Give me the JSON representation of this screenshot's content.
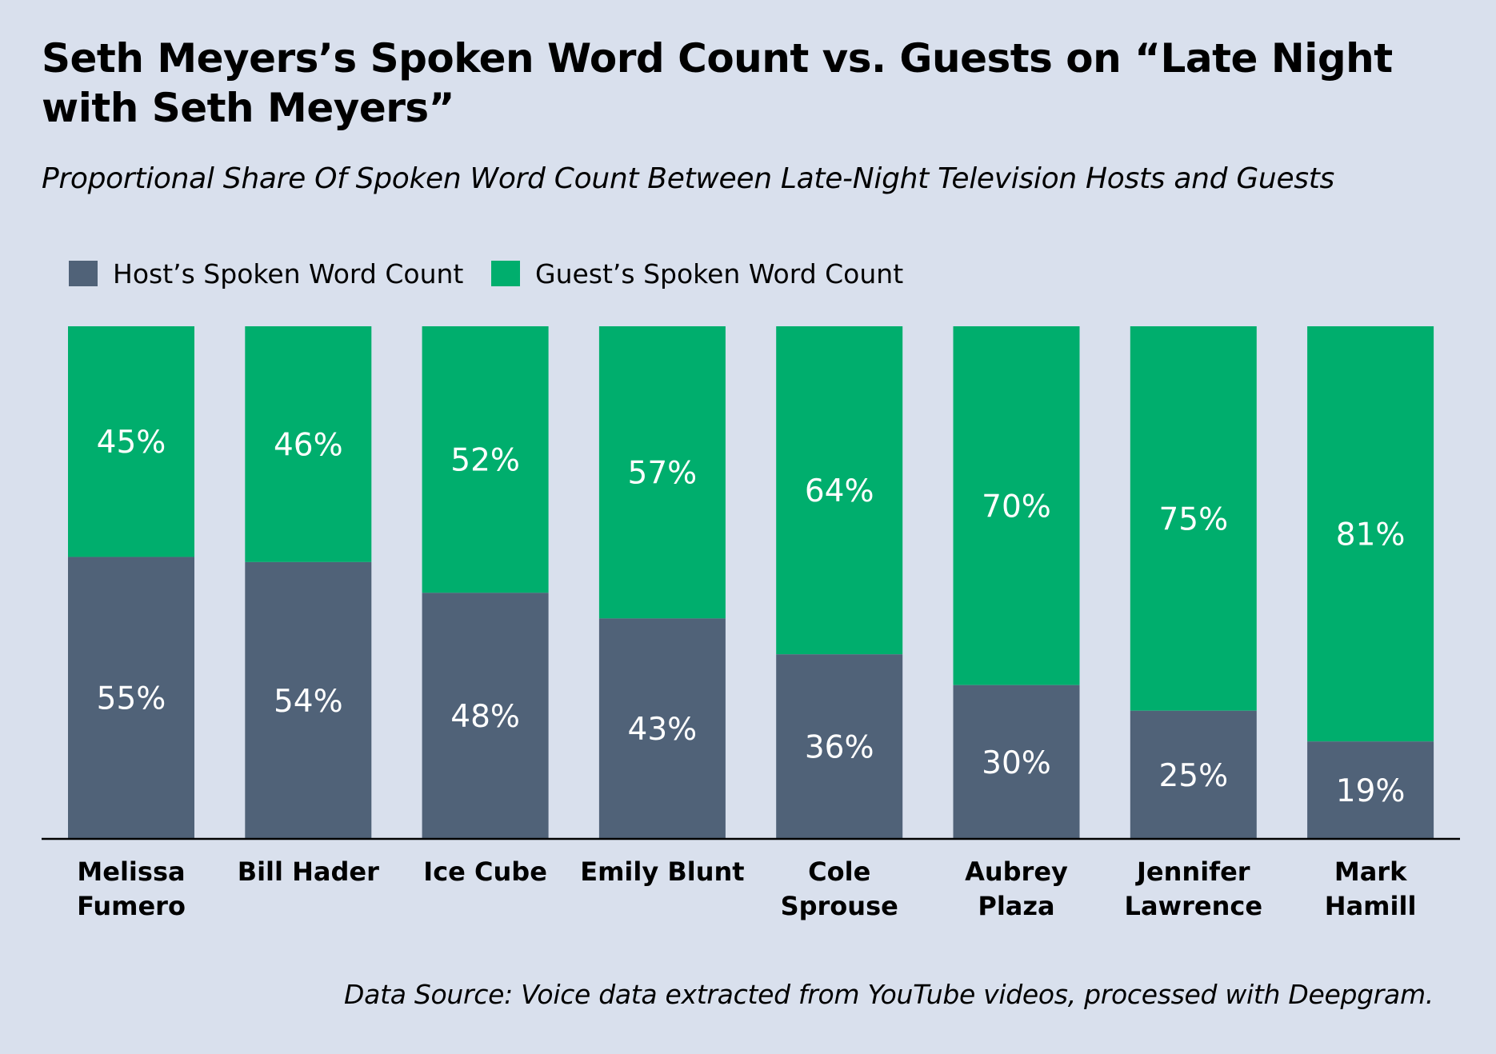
{
  "title": "Seth Meyers’s Spoken Word Count vs. Guests on “Late Night with Seth Meyers”",
  "subtitle": "Proportional Share Of Spoken Word Count Between Late-Night Television Hosts and Guests",
  "source": "Data Source: Voice data extracted from YouTube videos, processed with Deepgram.",
  "colors": {
    "background": "#d9e0ed",
    "host": "#506278",
    "guest": "#00ae6d",
    "axis": "#000000"
  },
  "chart_data": {
    "type": "bar",
    "stacked": true,
    "normalized": true,
    "categories": [
      [
        "Melissa",
        "Fumero"
      ],
      [
        "Bill Hader"
      ],
      [
        "Ice Cube"
      ],
      [
        "Emily Blunt"
      ],
      [
        "Cole",
        "Sprouse"
      ],
      [
        "Aubrey",
        "Plaza"
      ],
      [
        "Jennifer",
        "Lawrence"
      ],
      [
        "Mark",
        "Hamill"
      ]
    ],
    "series": [
      {
        "name": "Host’s Spoken Word Count",
        "color": "#506278",
        "values": [
          55,
          54,
          48,
          43,
          36,
          30,
          25,
          19
        ]
      },
      {
        "name": "Guest’s Spoken Word Count",
        "color": "#00ae6d",
        "values": [
          45,
          46,
          52,
          57,
          64,
          70,
          75,
          81
        ]
      }
    ],
    "value_suffix": "%",
    "ylim": [
      0,
      100
    ],
    "grid": false,
    "legend_position": "top-left"
  }
}
